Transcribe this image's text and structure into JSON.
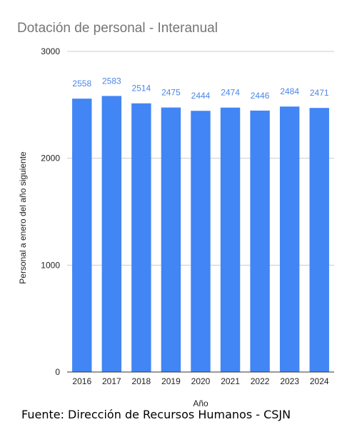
{
  "chart_data": {
    "type": "bar",
    "title": "Dotación de personal - Interanual",
    "xlabel": "Año",
    "ylabel": "Personal a enero del año siguiente",
    "categories": [
      "2016",
      "2017",
      "2018",
      "2019",
      "2020",
      "2021",
      "2022",
      "2023",
      "2024"
    ],
    "values": [
      2558,
      2583,
      2514,
      2475,
      2444,
      2474,
      2446,
      2484,
      2471
    ],
    "data_labels": [
      "2558",
      "2583",
      "2514",
      "2475",
      "2444",
      "2474",
      "2446",
      "2484",
      "2471"
    ],
    "ylim": [
      0,
      3000
    ],
    "yticks": [
      "0",
      "1000",
      "2000",
      "3000"
    ],
    "grid": true,
    "legend": "none",
    "colors": {
      "bar": "#4285f4",
      "data_label": "#4a86e8",
      "title": "#757575",
      "grid": "#cccccc"
    }
  },
  "footer": {
    "source": "Fuente: Dirección de Recursos Humanos - CSJN"
  }
}
